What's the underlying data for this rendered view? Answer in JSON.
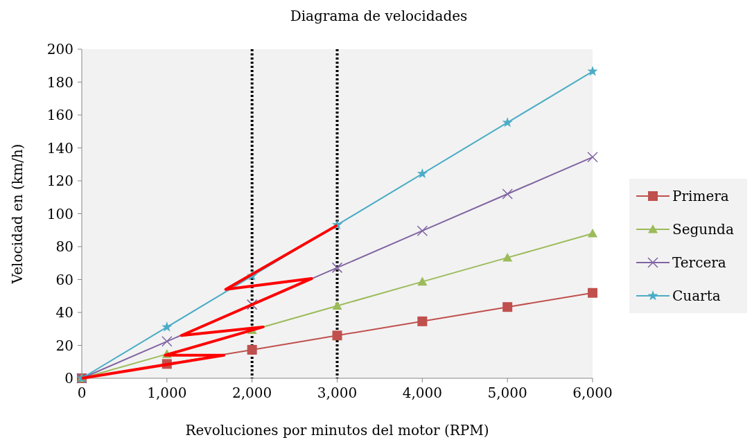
{
  "chart_data": {
    "type": "line",
    "title": "Diagrama de velocidades",
    "xlabel": "Revoluciones por minutos del motor (RPM)",
    "ylabel": "Velocidad en (km/h)",
    "x": [
      0,
      1000,
      2000,
      3000,
      4000,
      5000,
      6000
    ],
    "xlim": [
      0,
      6000
    ],
    "xticks": [
      {
        "value": 0,
        "label": "0"
      },
      {
        "value": 1000,
        "label": "1,000"
      },
      {
        "value": 2000,
        "label": "2,000"
      },
      {
        "value": 3000,
        "label": "3,000"
      },
      {
        "value": 4000,
        "label": "4,000"
      },
      {
        "value": 5000,
        "label": "5,000"
      },
      {
        "value": 6000,
        "label": "6,000"
      }
    ],
    "ylim": [
      0,
      200
    ],
    "yticks": [
      0,
      20,
      40,
      60,
      80,
      100,
      120,
      140,
      160,
      180,
      200
    ],
    "grid": false,
    "legend": "right",
    "line_style": "solid",
    "series": [
      {
        "name": "Primera",
        "color": "#c0504d",
        "marker": "square",
        "values": [
          0,
          8.7,
          17.3,
          26,
          34.6,
          43.3,
          51.9
        ]
      },
      {
        "name": "Segunda",
        "color": "#9bbb59",
        "marker": "triangle",
        "values": [
          0,
          14.7,
          29.3,
          44,
          58.7,
          73.3,
          88
        ]
      },
      {
        "name": "Tercera",
        "color": "#8064a2",
        "marker": "cross",
        "values": [
          0,
          22.4,
          44.8,
          67.2,
          89.6,
          112,
          134.4
        ]
      },
      {
        "name": "Cuarta",
        "color": "#4bacc6",
        "marker": "star",
        "values": [
          0,
          31.1,
          62.2,
          93.2,
          124.3,
          155.4,
          186.5
        ]
      },
      {
        "type": "line",
        "color": "#ff0000",
        "marker": "none",
        "x": [
          0,
          1670,
          980,
          2130,
          1170,
          2700,
          1690,
          3000
        ],
        "values": [
          0,
          14,
          14,
          31.2,
          26,
          60.6,
          54,
          93
        ]
      }
    ],
    "ref_lines": [
      {
        "axis": "x",
        "value": 2000,
        "color": "#000000",
        "line_style": "dotted"
      },
      {
        "axis": "x",
        "value": 3000,
        "color": "#000000",
        "line_style": "dotted"
      }
    ]
  }
}
